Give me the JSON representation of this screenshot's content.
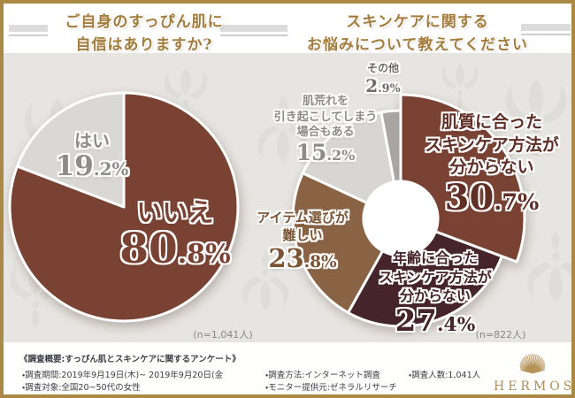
{
  "header": {
    "left_title_lines": [
      "ご自身のすっぴん肌に",
      "自信はありますか?"
    ],
    "right_title_lines": [
      "スキンケアに関する",
      "お悩みについて教えてください"
    ]
  },
  "chart_data": [
    {
      "type": "pie",
      "title": "ご自身のすっぴん肌に自信はありますか?",
      "sample_label": "(n=1,041人)",
      "start_angle_deg": 0,
      "direction": "clockwise",
      "legend_position": "inside",
      "slices": [
        {
          "key": "no",
          "label": "いいえ",
          "value": 80.8,
          "display": "80.8%",
          "color": "#7A4233",
          "text_color": "#7A4233"
        },
        {
          "key": "yes",
          "label": "はい",
          "value": 19.2,
          "display": "19.2%",
          "color": "#DAD8D5",
          "text_color": "#8F8C88"
        }
      ]
    },
    {
      "type": "donut",
      "title": "スキンケアに関するお悩みについて教えてください",
      "sample_label": "(n=822人)",
      "start_angle_deg": 0,
      "direction": "clockwise",
      "legend_position": "inside",
      "slices": [
        {
          "key": "skin-type-method-unknown",
          "label": "肌質に合ったスキンケア方法が分からない",
          "label_lines": [
            "肌質に合った",
            "スキンケア方法が",
            "分からない"
          ],
          "value": 30.7,
          "display": "30.7%",
          "color": "#7A4233",
          "text_color": "#5F2E25",
          "emphasized": true
        },
        {
          "key": "age-method-unknown",
          "label": "年齢に合ったスキンケア方法が分からない",
          "label_lines": [
            "年齢に合った",
            "スキンケア方法が",
            "分からない"
          ],
          "value": 27.4,
          "display": "27.4%",
          "color": "#46242B",
          "text_color": "#46242B"
        },
        {
          "key": "item-choice-difficult",
          "label": "アイテム選びが難しい",
          "label_lines": [
            "アイテム選びが",
            "難しい"
          ],
          "value": 23.8,
          "display": "23.8%",
          "color": "#8A6345",
          "text_color": "#7A5433"
        },
        {
          "key": "skin-trouble-possible",
          "label": "肌荒れを引き起こしてしまう場合もある",
          "label_lines": [
            "肌荒れを",
            "引き起こしてしまう",
            "場合もある"
          ],
          "value": 15.2,
          "display": "15.2%",
          "color": "#D8D6D3",
          "text_color": "#8F8C88"
        },
        {
          "key": "other",
          "label": "その他",
          "label_lines": [
            "その他"
          ],
          "value": 2.9,
          "display": "2.9%",
          "color": "#A8A5A2",
          "text_color": "#6F6D6A"
        }
      ]
    }
  ],
  "footer": {
    "summary": "《調査概要:すっぴん肌とスキンケアに関するアンケート》",
    "items": [
      "・調査期間:2019年9月19日(木)~ 2019年9月20日(金",
      "・調査対象:全国20~50代の女性",
      "・調査方法:インターネット調査",
      "・モニター提供元:ゼネラルリサーチ",
      "・調査人数:1,041人"
    ],
    "logo": {
      "text": "HERMOSA",
      "icon": "fan-icon"
    }
  },
  "colors": {
    "frame_gold": "#AB8843",
    "title_gold": "#A47C3C",
    "panel_bg": "#E7E5E2",
    "damask_motif": "#DEDBD8",
    "footer_text": "#3E3E48",
    "note_text": "#8A8782",
    "logo_gold": "#AD8F5C",
    "slice_stroke": "#FFFFFF"
  }
}
